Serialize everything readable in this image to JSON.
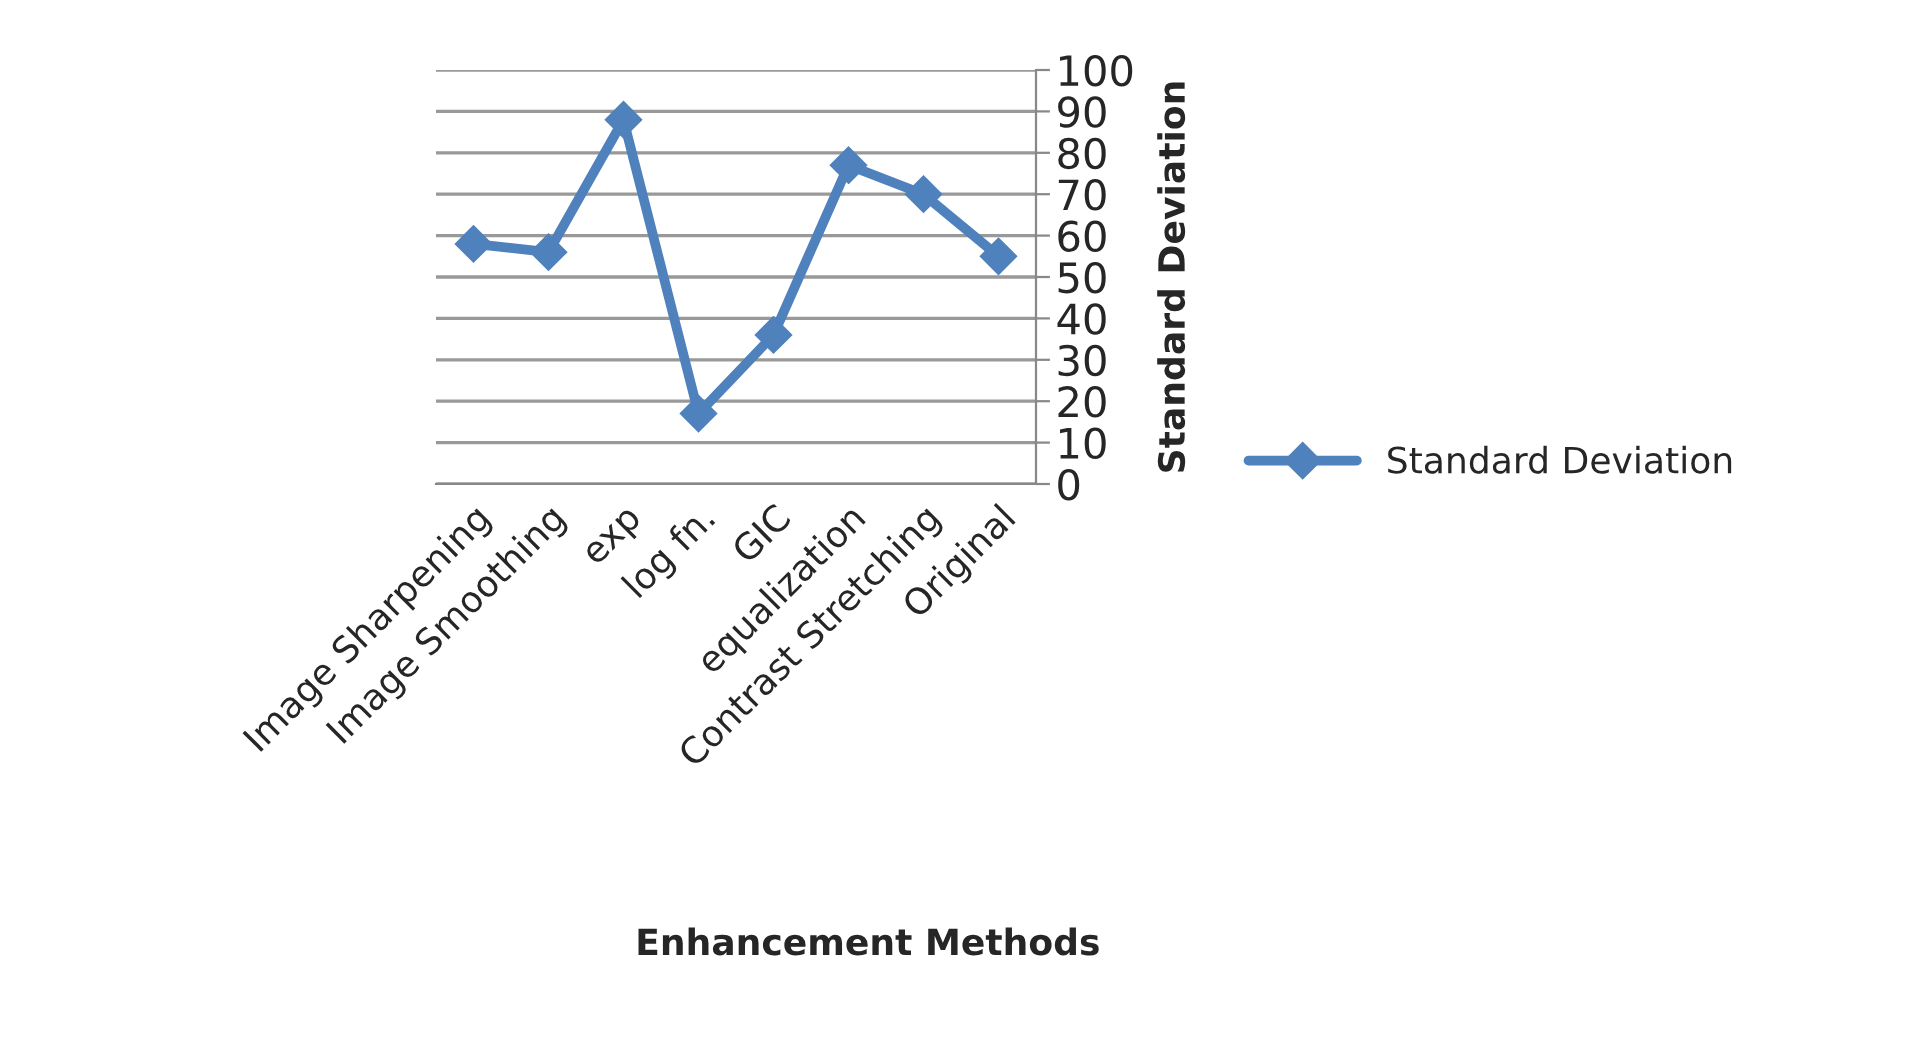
{
  "chart_data": {
    "type": "line",
    "xlabel": "Enhancement Methods",
    "ylabel": "Standard Deviation",
    "categories": [
      "Image Sharpening",
      "Image Smoothing",
      "exp",
      "log fn.",
      "GIC",
      "equalization",
      "Contrast Stretching",
      "Original"
    ],
    "series": [
      {
        "name": "Standard Deviation",
        "color": "#4f81bd",
        "values": [
          58,
          56,
          88,
          17,
          36,
          77,
          70,
          55
        ]
      }
    ],
    "ylim": [
      0,
      100
    ],
    "yticks": [
      0,
      10,
      20,
      30,
      40,
      50,
      60,
      70,
      80,
      90,
      100
    ],
    "grid": "y",
    "legend": "right",
    "marker": "diamond",
    "line_style": "solid"
  }
}
